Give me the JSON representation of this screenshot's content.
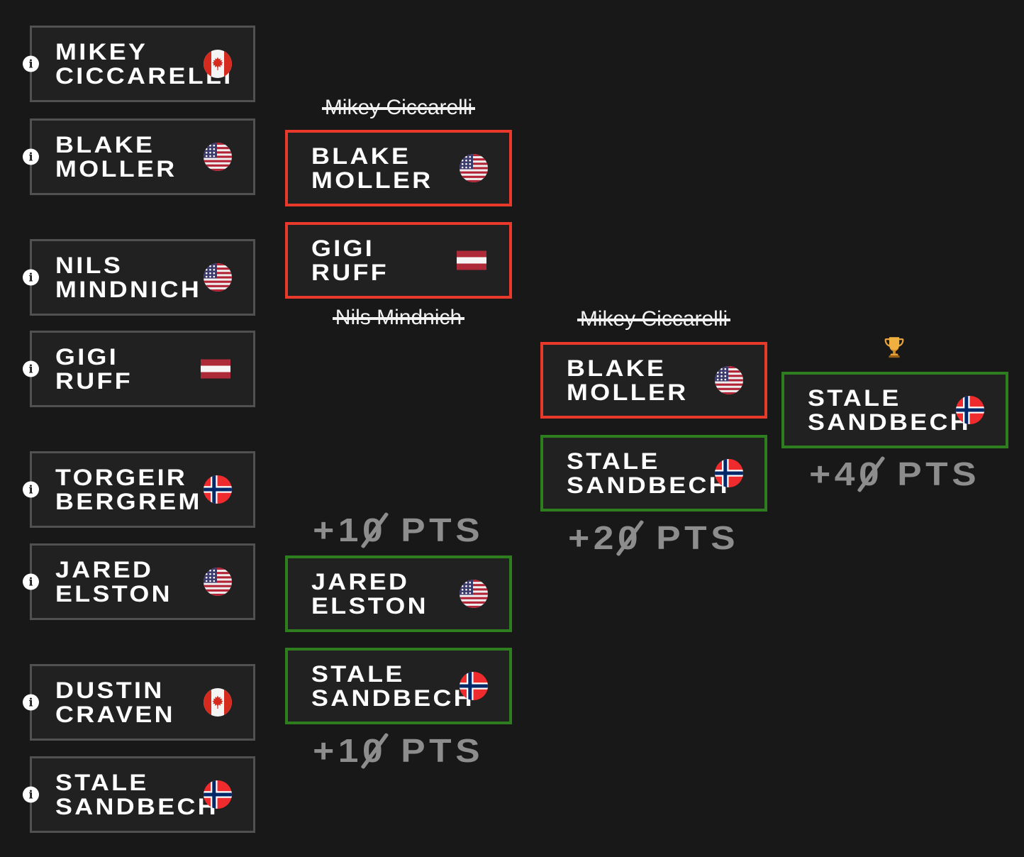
{
  "colors": {
    "background": "#181818",
    "card_background": "#212121",
    "card_border_gray": "#515151",
    "card_border_red": "#e8392b",
    "card_border_green": "#2e7d1f",
    "points_gray": "#8d8d8d",
    "text_white": "#ffffff"
  },
  "icons": {
    "info": "i",
    "trophy": "trophy"
  },
  "round1": [
    {
      "first": "Mikey",
      "last": "Ciccarelli",
      "flag": "CA"
    },
    {
      "first": "Blake",
      "last": "Moller",
      "flag": "US"
    },
    {
      "first": "Nils",
      "last": "Mindnich",
      "flag": "US"
    },
    {
      "first": "Gigi",
      "last": "Ruff",
      "flag": "AT"
    },
    {
      "first": "Torgeir",
      "last": "Bergrem",
      "flag": "NO"
    },
    {
      "first": "Jared",
      "last": "Elston",
      "flag": "US"
    },
    {
      "first": "Dustin",
      "last": "Craven",
      "flag": "CA"
    },
    {
      "first": "Stale",
      "last": "Sandbech",
      "flag": "NO"
    }
  ],
  "round2": {
    "eliminated_1": "Mikey Ciccarelli",
    "advancer_1": {
      "first": "Blake",
      "last": "Moller",
      "flag": "US",
      "highlight": "red"
    },
    "advancer_2": {
      "first": "Gigi",
      "last": "Ruff",
      "flag": "AT",
      "highlight": "red"
    },
    "eliminated_2": "Nils Mindnich",
    "points_top": "+10 PTS",
    "advancer_3": {
      "first": "Jared",
      "last": "Elston",
      "flag": "US",
      "highlight": "green"
    },
    "advancer_4": {
      "first": "Stale",
      "last": "Sandbech",
      "flag": "NO",
      "highlight": "green"
    },
    "points_bottom": "+10 PTS"
  },
  "round3": {
    "eliminated_1": "Mikey Ciccarelli",
    "finalist_1": {
      "first": "Blake",
      "last": "Moller",
      "flag": "US",
      "highlight": "red"
    },
    "finalist_2": {
      "first": "Stale",
      "last": "Sandbech",
      "flag": "NO",
      "highlight": "green"
    },
    "points": "+20 PTS"
  },
  "final": {
    "champion": {
      "first": "Stale",
      "last": "Sandbech",
      "flag": "NO",
      "highlight": "green"
    },
    "points": "+40 PTS"
  }
}
